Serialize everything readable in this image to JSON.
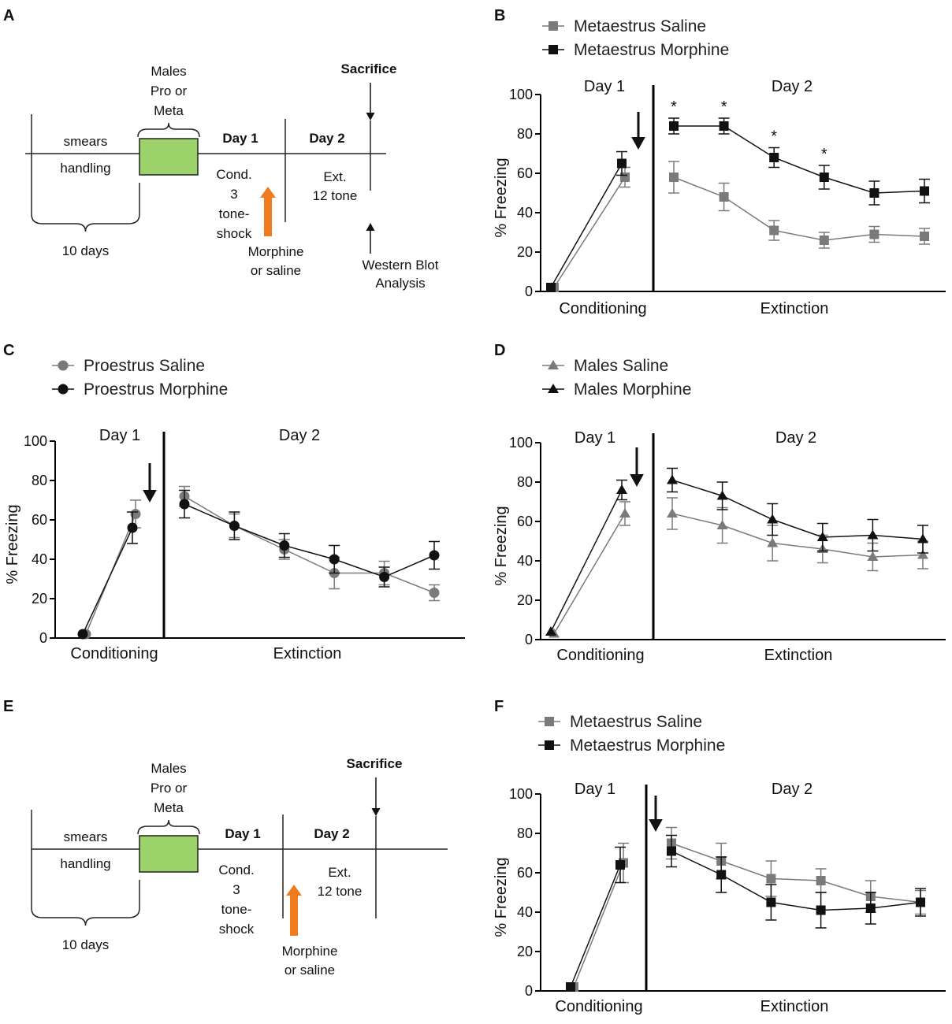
{
  "panels": {
    "A": {
      "letter": "A",
      "males_lines": [
        "Males",
        "Pro or",
        "Meta"
      ],
      "sacrifice": "Sacrifice",
      "smears": "smears",
      "handling": "handling",
      "duration": "10 days",
      "day1": "Day 1",
      "day2": "Day 2",
      "cond_lines": [
        "Cond.",
        "3",
        "tone-",
        "shock"
      ],
      "ext_lines": [
        "Ext.",
        "12 tone"
      ],
      "injection_lines": [
        "Morphine",
        "or saline"
      ],
      "assay_lines": [
        "Western Blot",
        "Analysis"
      ]
    },
    "E": {
      "letter": "E",
      "males_lines": [
        "Males",
        "Pro or",
        "Meta"
      ],
      "sacrifice": "Sacrifice",
      "smears": "smears",
      "handling": "handling",
      "duration": "10 days",
      "day1": "Day 1",
      "day2": "Day 2",
      "cond_lines": [
        "Cond.",
        "3",
        "tone-",
        "shock"
      ],
      "ext_lines": [
        "Ext.",
        "12 tone"
      ],
      "injection_lines": [
        "Morphine",
        "or saline"
      ]
    }
  },
  "colors": {
    "dark": "#111111",
    "gray": "#7a7a7a",
    "green": "#9bd36a",
    "orange": "#f07a1e",
    "axis": "#000000"
  },
  "chart_data": [
    {
      "panel": "B",
      "type": "line",
      "ylabel": "% Freezing",
      "ylim": [
        0,
        100
      ],
      "yticks": [
        0,
        20,
        40,
        60,
        80,
        100
      ],
      "day_labels": [
        "Day 1",
        "Day 2"
      ],
      "phase_labels": [
        "Conditioning",
        "Extinction"
      ],
      "marker": "square",
      "conditioning_x": [
        0,
        1
      ],
      "extinction_x": [
        0,
        1,
        2,
        3,
        4,
        5
      ],
      "series": [
        {
          "name": "Metaestrus Saline",
          "color": "#7a7a7a",
          "conditioning": [
            2,
            58
          ],
          "conditioning_err": [
            1,
            5
          ],
          "extinction": [
            58,
            48,
            31,
            26,
            29,
            28
          ],
          "extinction_err": [
            8,
            7,
            5,
            4,
            4,
            4
          ]
        },
        {
          "name": "Metaestrus Morphine",
          "color": "#111111",
          "conditioning": [
            2,
            65
          ],
          "conditioning_err": [
            1,
            6
          ],
          "extinction": [
            84,
            84,
            68,
            58,
            50,
            51
          ],
          "extinction_err": [
            4,
            4,
            5,
            6,
            6,
            6
          ]
        }
      ],
      "significance_markers": [
        0,
        1,
        2,
        3
      ],
      "significance_symbol": "*",
      "injection_arrow": "day1"
    },
    {
      "panel": "C",
      "type": "line",
      "ylabel": "% Freezing",
      "ylim": [
        0,
        100
      ],
      "yticks": [
        0,
        20,
        40,
        60,
        80,
        100
      ],
      "day_labels": [
        "Day 1",
        "Day 2"
      ],
      "phase_labels": [
        "Conditioning",
        "Extinction"
      ],
      "marker": "circle",
      "conditioning_x": [
        0,
        1
      ],
      "extinction_x": [
        0,
        1,
        2,
        3,
        4,
        5
      ],
      "series": [
        {
          "name": "Proestrus Saline",
          "color": "#7a7a7a",
          "conditioning": [
            2,
            63
          ],
          "conditioning_err": [
            1,
            7
          ],
          "extinction": [
            72,
            57,
            45,
            33,
            33,
            23
          ],
          "extinction_err": [
            5,
            6,
            5,
            8,
            6,
            4
          ]
        },
        {
          "name": "Proestrus Morphine",
          "color": "#111111",
          "conditioning": [
            2,
            56
          ],
          "conditioning_err": [
            1,
            8
          ],
          "extinction": [
            68,
            57,
            47,
            40,
            31,
            42
          ],
          "extinction_err": [
            7,
            7,
            6,
            7,
            5,
            7
          ]
        }
      ],
      "significance_markers": [],
      "significance_symbol": "*",
      "injection_arrow": "day1"
    },
    {
      "panel": "D",
      "type": "line",
      "ylabel": "% Freezing",
      "ylim": [
        0,
        100
      ],
      "yticks": [
        0,
        20,
        40,
        60,
        80,
        100
      ],
      "day_labels": [
        "Day 1",
        "Day 2"
      ],
      "phase_labels": [
        "Conditioning",
        "Extinction"
      ],
      "marker": "triangle",
      "conditioning_x": [
        0,
        1
      ],
      "extinction_x": [
        0,
        1,
        2,
        3,
        4,
        5
      ],
      "series": [
        {
          "name": "Males Saline",
          "color": "#7a7a7a",
          "conditioning": [
            3,
            64
          ],
          "conditioning_err": [
            1,
            6
          ],
          "extinction": [
            64,
            58,
            49,
            46,
            42,
            43
          ],
          "extinction_err": [
            8,
            9,
            9,
            7,
            7,
            7
          ]
        },
        {
          "name": "Males Morphine",
          "color": "#111111",
          "conditioning": [
            4,
            76
          ],
          "conditioning_err": [
            1,
            5
          ],
          "extinction": [
            81,
            73,
            61,
            52,
            53,
            51
          ],
          "extinction_err": [
            6,
            7,
            8,
            7,
            8,
            7
          ]
        }
      ],
      "significance_markers": [],
      "significance_symbol": "*",
      "injection_arrow": "day1"
    },
    {
      "panel": "F",
      "type": "line",
      "ylabel": "% Freezing",
      "ylim": [
        0,
        100
      ],
      "yticks": [
        0,
        20,
        40,
        60,
        80,
        100
      ],
      "day_labels": [
        "Day 1",
        "Day 2"
      ],
      "phase_labels": [
        "Conditioning",
        "Extinction"
      ],
      "marker": "square",
      "conditioning_x": [
        0,
        1
      ],
      "extinction_x": [
        0,
        1,
        2,
        3,
        4,
        5
      ],
      "series": [
        {
          "name": "Metaestrus Saline",
          "color": "#7a7a7a",
          "conditioning": [
            2,
            65
          ],
          "conditioning_err": [
            1,
            10
          ],
          "extinction": [
            75,
            66,
            57,
            56,
            48,
            45
          ],
          "extinction_err": [
            8,
            9,
            9,
            6,
            8,
            6
          ]
        },
        {
          "name": "Metaestrus Morphine",
          "color": "#111111",
          "conditioning": [
            2,
            64
          ],
          "conditioning_err": [
            1,
            9
          ],
          "extinction": [
            71,
            59,
            45,
            41,
            42,
            45
          ],
          "extinction_err": [
            8,
            9,
            9,
            9,
            8,
            7
          ]
        }
      ],
      "significance_markers": [],
      "significance_symbol": "*",
      "injection_arrow": "day2"
    }
  ]
}
